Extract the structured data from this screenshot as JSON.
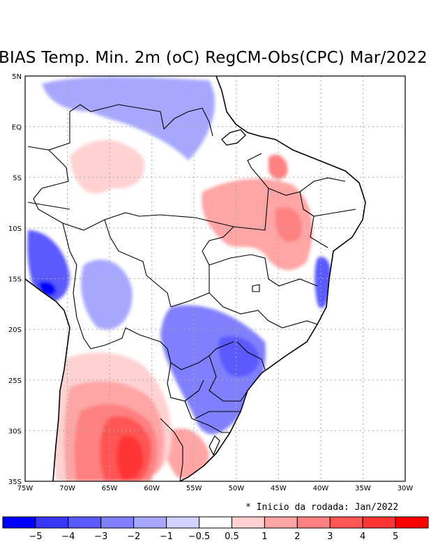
{
  "title": "BIAS Temp. Min. 2m (oC) RegCM-Obs(CPC) Mar/2022",
  "note": "* Inicio da rodada: Jan/2022",
  "axes": {
    "lon_ticks": [
      "75W",
      "70W",
      "65W",
      "60W",
      "55W",
      "50W",
      "45W",
      "40W",
      "35W",
      "30W"
    ],
    "lat_ticks": [
      "5N",
      "EQ",
      "5S",
      "10S",
      "15S",
      "20S",
      "25S",
      "30S",
      "35S"
    ]
  },
  "legend": {
    "colors": [
      "#0000ff",
      "#3737f5",
      "#5a5aff",
      "#8080ff",
      "#a7a7ff",
      "#d2d2ff",
      "#ffffff",
      "#ffd2d2",
      "#ffa5a5",
      "#ff8080",
      "#ff5555",
      "#ff3434",
      "#ff0000"
    ],
    "labels": [
      "−5",
      "−4",
      "−3",
      "−2",
      "−1",
      "−0.5",
      "0.5",
      "1",
      "2",
      "3",
      "4",
      "5"
    ]
  },
  "regions": [
    {
      "name": "argentina-warm-outer",
      "level": "pale-red",
      "color": "#ffd2d2"
    },
    {
      "name": "argentina-warm-mid",
      "level": "light-red",
      "color": "#ffa5a5"
    },
    {
      "name": "argentina-warm",
      "level": "red",
      "color": "#ff8080"
    },
    {
      "name": "argentina-warm-core",
      "level": "strong-red",
      "color": "#ff5555"
    },
    {
      "name": "argentina-warm-peak",
      "level": "peak-red",
      "color": "#ff3434"
    },
    {
      "name": "uruguay-warm",
      "level": "light-red",
      "color": "#ffa5a5"
    },
    {
      "name": "northeast-warm",
      "level": "light-red",
      "color": "#ffa5a5"
    },
    {
      "name": "northeast-warm-core",
      "level": "red",
      "color": "#ff8080"
    },
    {
      "name": "amazon-warm",
      "level": "pale-red",
      "color": "#ffd2d2"
    },
    {
      "name": "southeast-cold",
      "level": "mid-blue",
      "color": "#8080ff"
    },
    {
      "name": "southeast-cold-core",
      "level": "blue",
      "color": "#5a5aff"
    },
    {
      "name": "chaco-cold",
      "level": "blue",
      "color": "#5a5aff"
    },
    {
      "name": "bolivia-cold",
      "level": "light-blue",
      "color": "#a7a7ff"
    },
    {
      "name": "peru-cold",
      "level": "blue",
      "color": "#5a5aff"
    },
    {
      "name": "peru-cold-peak",
      "level": "deep-blue",
      "color": "#0000ff"
    },
    {
      "name": "guiana-cold",
      "level": "light-blue",
      "color": "#a7a7ff"
    },
    {
      "name": "bahia-coast-cold",
      "level": "blue",
      "color": "#5a5aff"
    },
    {
      "name": "pacific-ocean",
      "level": "no-data",
      "color": "#ffffff"
    },
    {
      "name": "atlantic-ocean",
      "level": "no-data",
      "color": "#ffffff"
    }
  ]
}
